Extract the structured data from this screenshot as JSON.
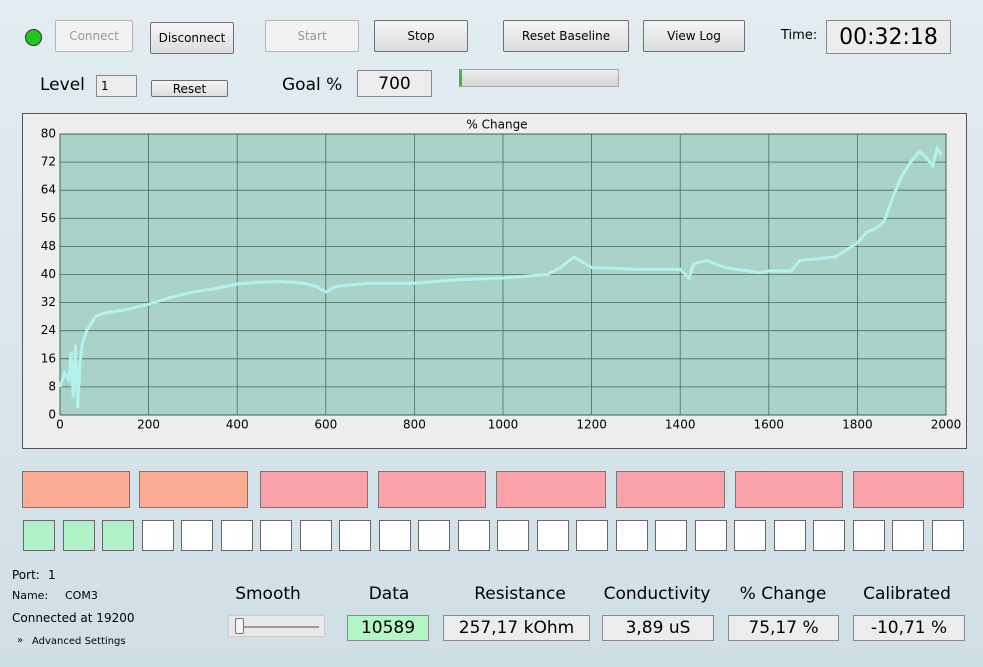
{
  "buttons": {
    "connect": "Connect",
    "disconnect": "Disconnect",
    "start": "Start",
    "stop": "Stop",
    "reset_baseline": "Reset Baseline",
    "view_log": "View Log"
  },
  "time_label": "Time:",
  "time": "00:32:18",
  "level_label": "Level",
  "level": "1",
  "reset": "Reset",
  "goal_label": "Goal %",
  "goal": "700",
  "chart_data": {
    "type": "line",
    "title": "% Change",
    "color": "#b4f2ee",
    "grid": true,
    "x": [
      0,
      10,
      20,
      25,
      30,
      35,
      40,
      45,
      50,
      60,
      70,
      80,
      100,
      150,
      200,
      250,
      300,
      350,
      400,
      450,
      500,
      550,
      580,
      600,
      620,
      650,
      700,
      800,
      850,
      900,
      1000,
      1100,
      1130,
      1160,
      1200,
      1300,
      1400,
      1420,
      1430,
      1460,
      1500,
      1580,
      1600,
      1650,
      1670,
      1750,
      1800,
      1820,
      1840,
      1860,
      1880,
      1900,
      1920,
      1940,
      1950,
      1970,
      1980,
      1990
    ],
    "values": [
      8,
      12,
      10,
      18,
      5,
      20,
      2,
      15,
      20,
      24,
      26,
      28,
      29,
      30,
      31.5,
      33.5,
      35,
      36,
      37.3,
      37.8,
      38,
      37.5,
      36.5,
      35,
      36.5,
      37,
      37.5,
      37.5,
      38,
      38.5,
      39,
      40,
      42,
      45,
      42,
      41.5,
      41.5,
      39,
      43,
      44,
      42,
      40.5,
      41,
      41,
      44,
      45,
      49,
      52,
      53,
      55,
      62,
      68,
      72,
      75,
      74,
      71,
      76,
      74
    ],
    "xlim": [
      0,
      2000
    ],
    "xticks": [
      0,
      200,
      400,
      600,
      800,
      1000,
      1200,
      1400,
      1600,
      1800,
      2000
    ],
    "ylim": [
      0,
      80
    ],
    "yticks": [
      0,
      8,
      16,
      24,
      32,
      40,
      48,
      56,
      64,
      72,
      80
    ]
  },
  "status": {
    "port_label": "Port:",
    "port": "1",
    "name_label": "Name:",
    "name": "COM3",
    "connected": "Connected at 19200",
    "advanced": "Advanced Settings"
  },
  "smooth_label": "Smooth",
  "readouts": [
    {
      "label": "Data",
      "value": "10589"
    },
    {
      "label": "Resistance",
      "value": "257,17 kOhm"
    },
    {
      "label": "Conductivity",
      "value": "3,89 uS"
    },
    {
      "label": "% Change",
      "value": "75,17 %"
    },
    {
      "label": "Calibrated",
      "value": "-10,71 %"
    }
  ]
}
